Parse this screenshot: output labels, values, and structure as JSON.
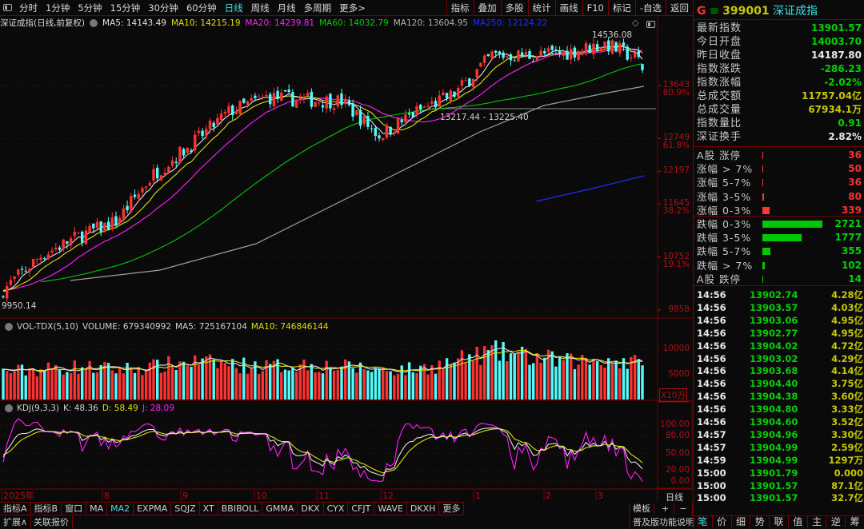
{
  "toolbar": {
    "periods": [
      "分时",
      "1分钟",
      "5分钟",
      "15分钟",
      "30分钟",
      "60分钟",
      "日线",
      "周线",
      "月线",
      "多周期",
      "更多>"
    ],
    "active_period": "日线",
    "right_buttons": [
      "指标",
      "叠加",
      "多股",
      "统计",
      "画线",
      "F10",
      "标记",
      "-自选",
      "返回"
    ]
  },
  "chart_header": {
    "title": "深证成指(日线,前复权)",
    "ma5": "MA5: 14143.49",
    "ma10": "MA10: 14215.19",
    "ma20": "MA20: 14239.81",
    "ma60": "MA60: 14032.79",
    "ma120": "MA120: 13604.95",
    "ma250": "MA250: 12124.22"
  },
  "colors": {
    "up": "#ff3232",
    "down": "#54fcfc",
    "ma5": "#e0e0e0",
    "ma10": "#e0e000",
    "ma20": "#ff20ff",
    "ma60": "#00c800",
    "ma120": "#a0a0a0",
    "ma250": "#2828ff",
    "axis": "#b01010"
  },
  "price_axis": [
    {
      "v": "13643",
      "p": "80.9%"
    },
    {
      "v": "12749",
      "p": "61.8%"
    },
    {
      "v": "12197",
      "p": ""
    },
    {
      "v": "11645",
      "p": "38.2%"
    },
    {
      "v": "10752",
      "p": "19.1%"
    },
    {
      "v": "9858",
      "p": ""
    }
  ],
  "annotations": {
    "high": "14536.08",
    "low": "9950.14",
    "range": "13217.44 - 13225.40"
  },
  "volume_header": {
    "name": "VOL-TDX(5,10)",
    "volume": "VOLUME: 679340992",
    "ma5": "MA5: 725167104",
    "ma10": "MA10: 746846144"
  },
  "volume_axis": [
    "10000",
    "5000"
  ],
  "volume_unit": "X10万",
  "kdj_header": {
    "name": "KDJ(9,3,3)",
    "k": "K: 48.36",
    "d": "D: 58.49",
    "j": "J: 28.09"
  },
  "kdj_axis": [
    "100.00",
    "80.00",
    "50.00",
    "20.00",
    "0.00"
  ],
  "date_axis": [
    "2025年",
    "8",
    "9",
    "10",
    "11",
    "12",
    "1",
    "2",
    "3"
  ],
  "period_label": "日线",
  "indicator_tabs": [
    "指标A",
    "指标B",
    "窗口",
    "MA",
    "MA2",
    "EXPMA",
    "SQJZ",
    "XT",
    "BBIBOLL",
    "GMMA",
    "DKX",
    "CYX",
    "CFJT",
    "WAVE",
    "DKXH",
    "更多"
  ],
  "active_indicator": "MA2",
  "bottom": {
    "expand": "扩展∧",
    "related": "关联报价",
    "template": "模板",
    "plus": "+",
    "minus": "−",
    "help": "普及版功能说明"
  },
  "chart_data": {
    "type": "candlestick",
    "close_path": [
      10200,
      10774,
      11100,
      11350,
      12150,
      12650,
      13200,
      13450,
      13400,
      13380,
      12800,
      13200,
      13500,
      14150,
      14150,
      14200,
      14350,
      14050
    ],
    "last_close": 13901.57,
    "high": 14536.08,
    "low": 9950.14,
    "volume_path": [
      5500,
      6000,
      6500,
      6000,
      6500,
      7500,
      7000,
      6500,
      7000,
      6500,
      6000,
      6000,
      7500,
      9500,
      8500,
      7500,
      8000,
      7000
    ],
    "last_volume": 6793
  },
  "quote": {
    "g": "G",
    "menu": "≡",
    "code": "399001",
    "name": "深证成指",
    "stats": [
      {
        "l": "最新指数",
        "v": "13901.57",
        "c": "g"
      },
      {
        "l": "今日开盘",
        "v": "14003.70",
        "c": "g"
      },
      {
        "l": "昨日收盘",
        "v": "14187.80",
        "c": "w"
      },
      {
        "l": "指数涨跌",
        "v": "-286.23",
        "c": "g"
      },
      {
        "l": "指数涨幅",
        "v": "-2.02%",
        "c": "g"
      },
      {
        "l": "总成交额",
        "v": "11757.04亿",
        "c": "y"
      },
      {
        "l": "总成交量",
        "v": "67934.1万",
        "c": "y"
      },
      {
        "l": "指数量比",
        "v": "0.91",
        "c": "g"
      },
      {
        "l": "深证换手",
        "v": "2.82%",
        "c": "w"
      }
    ],
    "up": [
      {
        "l": "A股 涨停",
        "v": "36"
      },
      {
        "l": "涨幅 > 7%",
        "v": "50"
      },
      {
        "l": "涨幅 5-7%",
        "v": "36"
      },
      {
        "l": "涨幅 3-5%",
        "v": "80"
      },
      {
        "l": "涨幅 0-3%",
        "v": "339"
      }
    ],
    "down": [
      {
        "l": "跌幅 0-3%",
        "v": "2721"
      },
      {
        "l": "跌幅 3-5%",
        "v": "1777"
      },
      {
        "l": "跌幅 5-7%",
        "v": "355"
      },
      {
        "l": "跌幅 > 7%",
        "v": "102"
      },
      {
        "l": "A股 跌停",
        "v": "14"
      }
    ],
    "ticks": [
      [
        "14:56",
        "13902.74",
        "4.28亿"
      ],
      [
        "14:56",
        "13903.57",
        "4.03亿"
      ],
      [
        "14:56",
        "13903.06",
        "4.95亿"
      ],
      [
        "14:56",
        "13902.77",
        "4.95亿"
      ],
      [
        "14:56",
        "13904.02",
        "4.72亿"
      ],
      [
        "14:56",
        "13903.02",
        "4.29亿"
      ],
      [
        "14:56",
        "13903.68",
        "4.14亿"
      ],
      [
        "14:56",
        "13904.40",
        "3.75亿"
      ],
      [
        "14:56",
        "13904.38",
        "3.60亿"
      ],
      [
        "14:56",
        "13904.80",
        "3.33亿"
      ],
      [
        "14:56",
        "13904.60",
        "3.52亿"
      ],
      [
        "14:57",
        "13904.96",
        "3.30亿"
      ],
      [
        "14:57",
        "13904.99",
        "2.59亿"
      ],
      [
        "14:59",
        "13904.99",
        "1297万"
      ],
      [
        "15:00",
        "13901.79",
        "0.000"
      ],
      [
        "15:00",
        "13901.57",
        "87.1亿"
      ],
      [
        "15:00",
        "13901.57",
        "32.7亿"
      ]
    ],
    "tabs": [
      "笔",
      "价",
      "细",
      "势",
      "联",
      "值",
      "主",
      "逆",
      "筹"
    ],
    "active_tab": "笔"
  }
}
